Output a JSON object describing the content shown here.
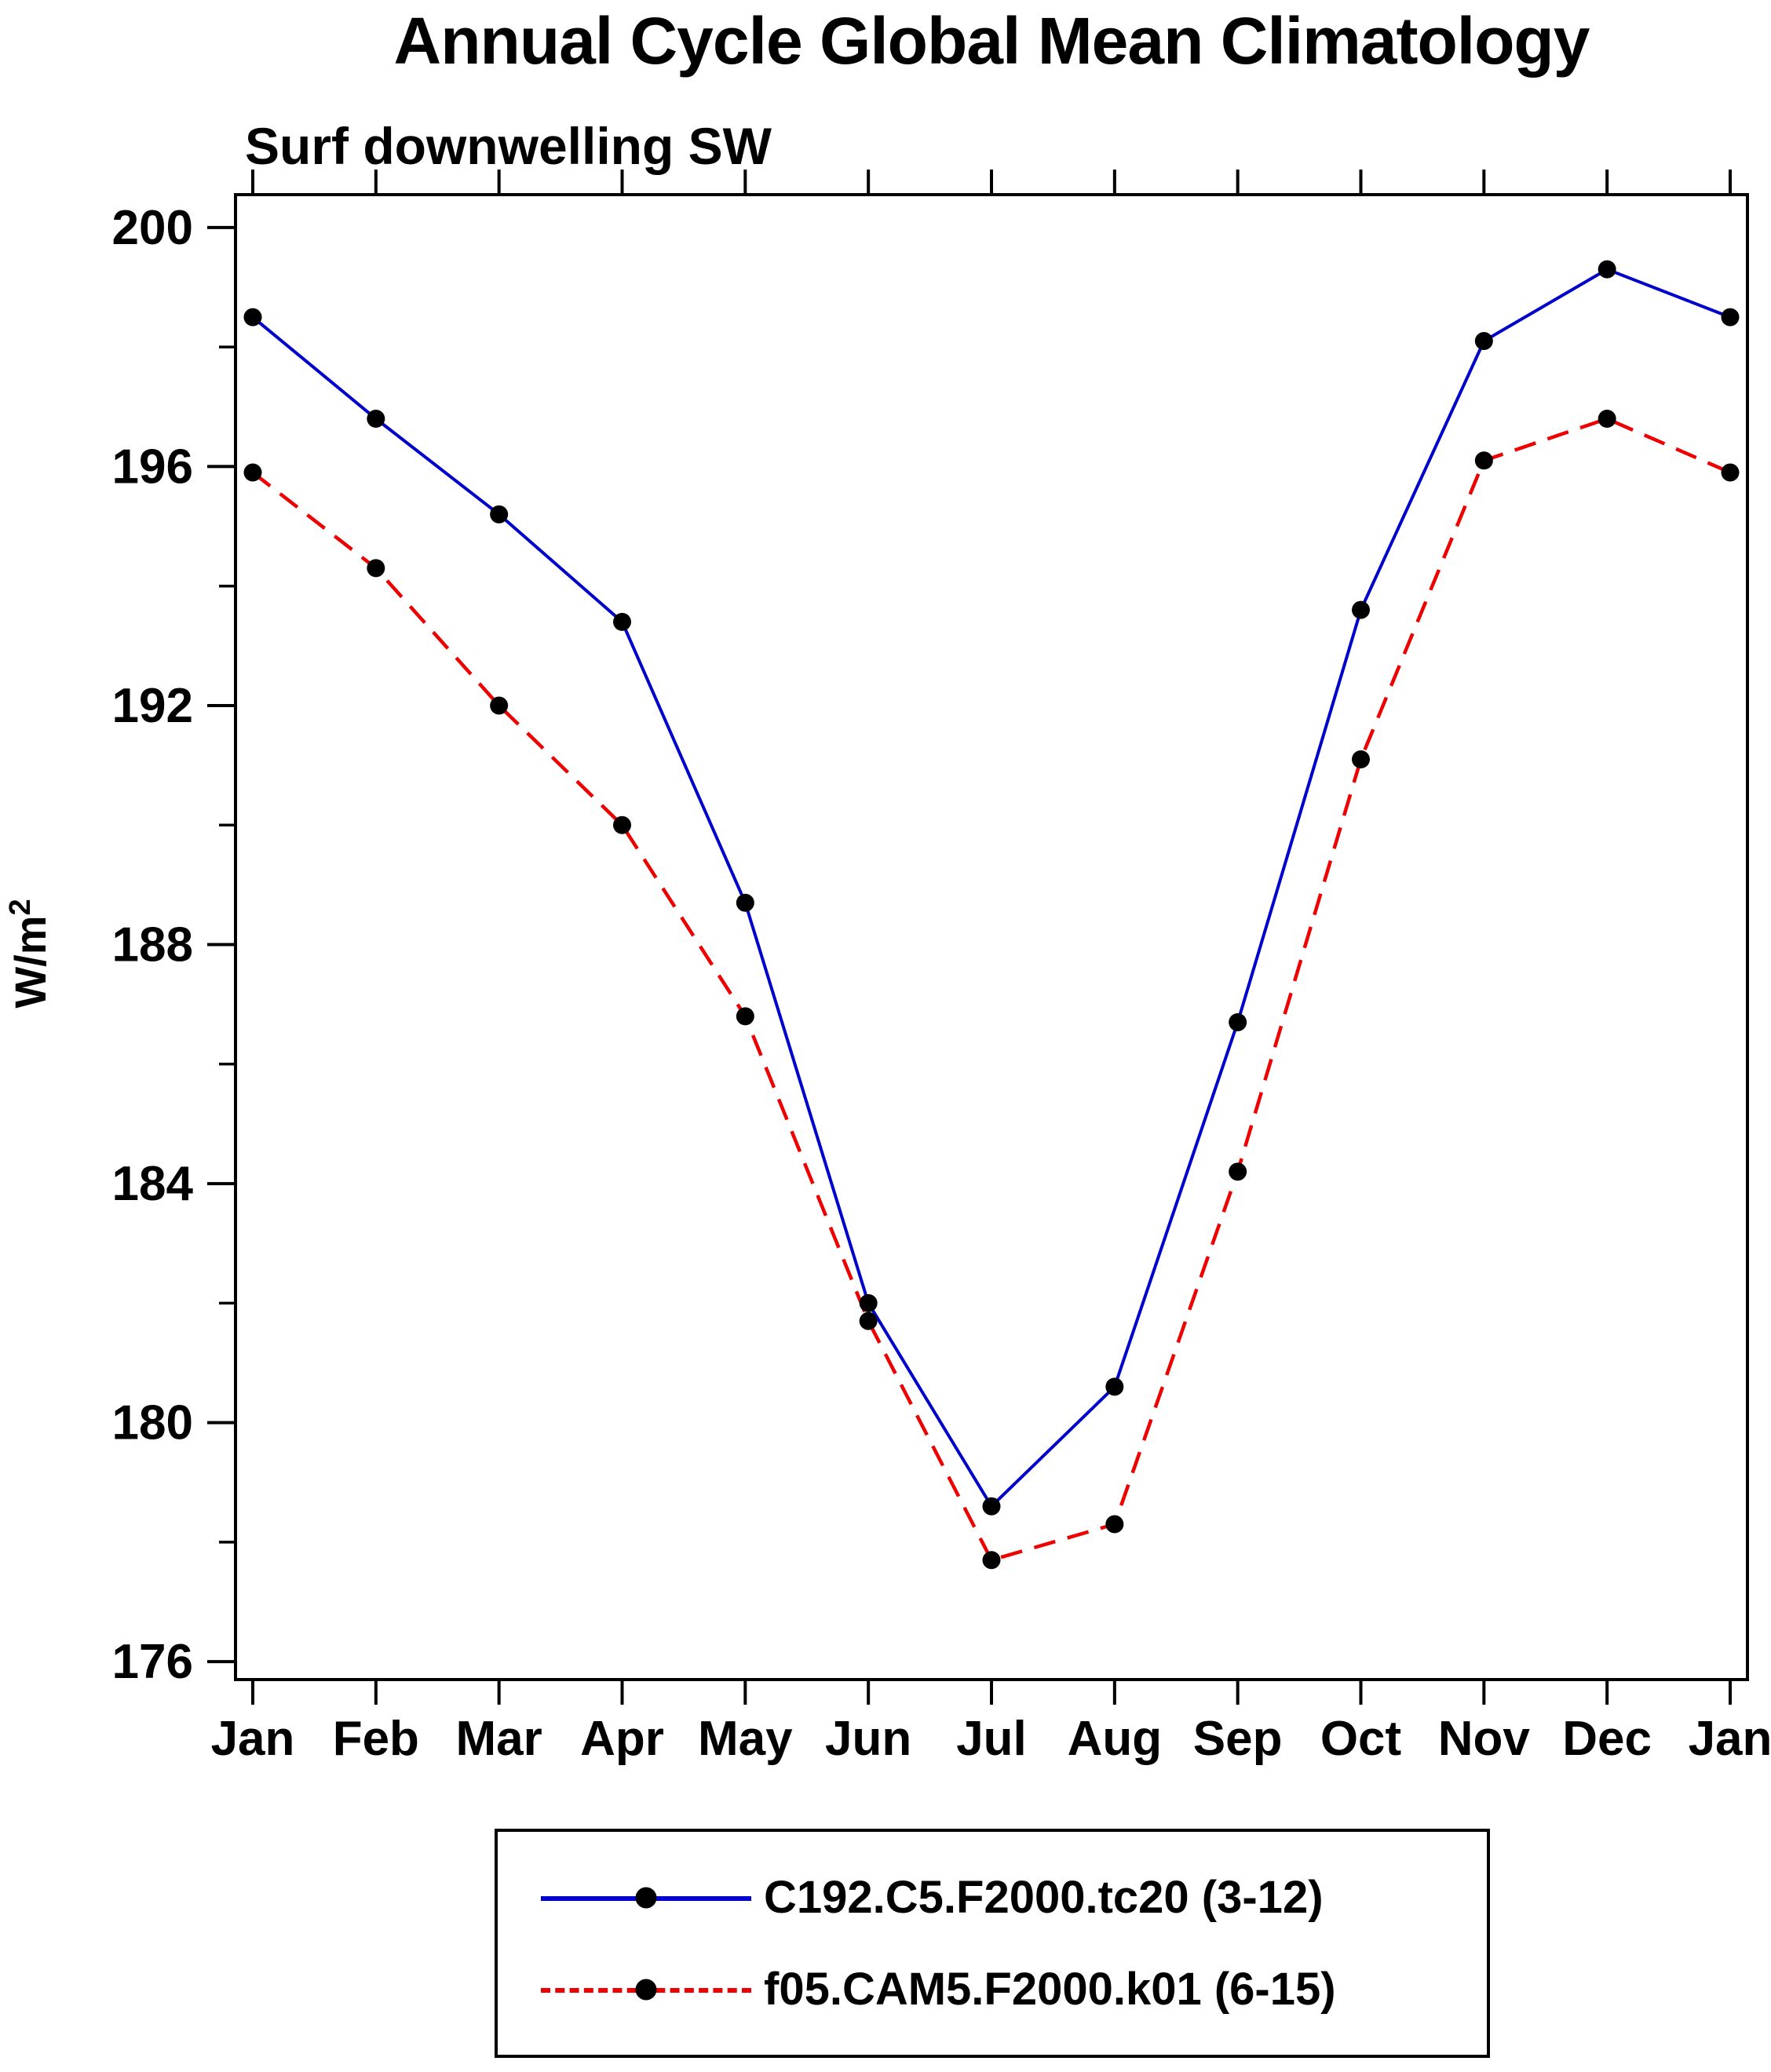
{
  "title": "Annual Cycle Global Mean Climatology",
  "subtitle": "Surf downwelling SW",
  "ylabel": {
    "base": "W/m",
    "exp": "2"
  },
  "chart_data": {
    "type": "line",
    "title": "Annual Cycle Global Mean Climatology",
    "subtitle": "Surf downwelling SW",
    "ylabel": "W/m^2",
    "x_tick_labels": [
      "Jan",
      "Feb",
      "Mar",
      "Apr",
      "May",
      "Jun",
      "Jul",
      "Aug",
      "Sep",
      "Oct",
      "Nov",
      "Dec",
      "Jan"
    ],
    "ylim": [
      175.7,
      200.55
    ],
    "y_major_ticks": [
      176,
      180,
      184,
      188,
      192,
      196,
      200
    ],
    "y_minor_ticks": [
      178,
      182,
      186,
      190,
      194,
      198
    ],
    "grid": false,
    "legend_position": "bottom",
    "marker": {
      "shape": "circle",
      "color": "#000000",
      "radius": 11.5
    },
    "series": [
      {
        "name": "C192.C5.F2000.tc20 (3-12)",
        "color": "#0000cc",
        "line_style": "solid",
        "values": [
          198.5,
          196.8,
          195.2,
          193.4,
          188.7,
          182.0,
          178.6,
          180.6,
          186.7,
          193.6,
          198.1,
          199.3,
          198.5
        ]
      },
      {
        "name": "f05.CAM5.F2000.k01 (6-15)",
        "color": "#ee0000",
        "line_style": "dashed",
        "values": [
          195.9,
          194.3,
          192.0,
          190.0,
          186.8,
          181.7,
          177.7,
          178.3,
          184.2,
          191.1,
          196.1,
          196.8,
          195.9
        ]
      }
    ]
  },
  "legend": {
    "entries": [
      {
        "label": "C192.C5.F2000.tc20 (3-12)",
        "color": "#0000cc",
        "style": "solid"
      },
      {
        "label": "f05.CAM5.F2000.k01 (6-15)",
        "color": "#ee0000",
        "style": "dashed"
      }
    ]
  }
}
